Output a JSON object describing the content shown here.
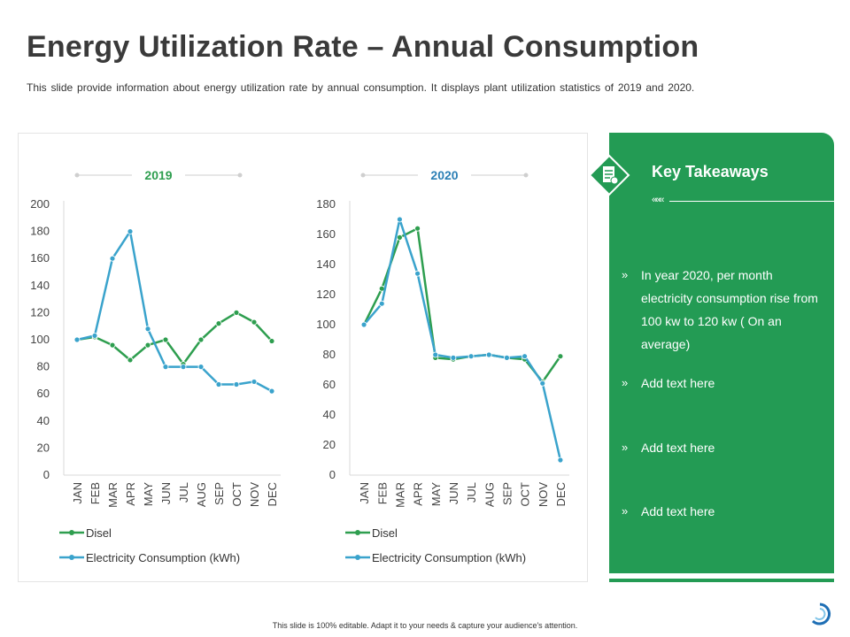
{
  "slide": {
    "title": "Energy Utilization Rate – Annual Consumption",
    "subtitle": "This slide provide information about energy utilization rate by annual consumption. It displays plant utilization statistics of 2019 and 2020.",
    "footer": "This slide is 100% editable. Adapt it to your needs & capture your audience's attention."
  },
  "colors": {
    "disel": "#2e9e4f",
    "electricity": "#3aa3cc",
    "title2019": "#2e9e4f",
    "title2020": "#2b7fb5",
    "panel": "#239b54"
  },
  "chart_data": [
    {
      "type": "line",
      "title": "2019",
      "categories": [
        "JAN",
        "FEB",
        "MAR",
        "APR",
        "MAY",
        "JUN",
        "JUL",
        "AUG",
        "SEP",
        "OCT",
        "NOV",
        "DEC"
      ],
      "ylim": [
        0,
        200
      ],
      "yticks": [
        0,
        20,
        40,
        60,
        80,
        100,
        120,
        140,
        160,
        180,
        200
      ],
      "series": [
        {
          "name": "Disel",
          "values": [
            100,
            102,
            96,
            85,
            96,
            100,
            82,
            100,
            112,
            120,
            113,
            99
          ]
        },
        {
          "name": "Electricity Consumption (kWh)",
          "values": [
            100,
            103,
            160,
            180,
            108,
            80,
            80,
            80,
            67,
            67,
            69,
            62
          ]
        }
      ],
      "legend_position": "bottom"
    },
    {
      "type": "line",
      "title": "2020",
      "categories": [
        "JAN",
        "FEB",
        "MAR",
        "APR",
        "MAY",
        "JUN",
        "JUL",
        "AUG",
        "SEP",
        "OCT",
        "NOV",
        "DEC"
      ],
      "ylim": [
        0,
        180
      ],
      "yticks": [
        0,
        20,
        40,
        60,
        80,
        100,
        120,
        140,
        160,
        180
      ],
      "series": [
        {
          "name": "Disel",
          "values": [
            100,
            124,
            158,
            164,
            78,
            77,
            79,
            80,
            78,
            77,
            62,
            79
          ]
        },
        {
          "name": "Electricity Consumption (kWh)",
          "values": [
            100,
            114,
            170,
            134,
            80,
            78,
            79,
            80,
            78,
            79,
            61,
            10
          ]
        }
      ],
      "legend_position": "bottom"
    }
  ],
  "takeaways": {
    "title": "Key Takeaways",
    "arrows": "«««",
    "bullet_mark": "»",
    "icon": "document-icon",
    "items": [
      "In year 2020, per month electricity consumption rise from 100 kw to 120 kw ( On an average)",
      "Add text here",
      "Add text here",
      "Add text here"
    ]
  }
}
